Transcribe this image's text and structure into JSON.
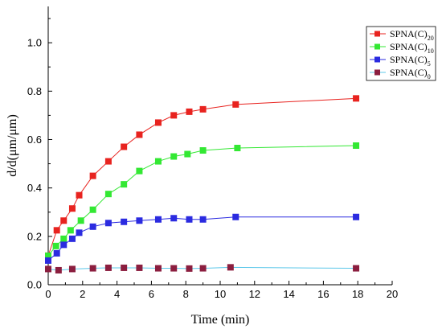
{
  "chart_data": {
    "type": "line",
    "xlabel": "Time (min)",
    "ylabel": "d/d(μm/μm)",
    "xlim": [
      0,
      20
    ],
    "ylim": [
      0,
      1.15
    ],
    "xticks": [
      "0",
      "2",
      "4",
      "6",
      "8",
      "10",
      "12",
      "14",
      "16",
      "18",
      "20"
    ],
    "yticks": [
      "0.0",
      "0.2",
      "0.4",
      "0.6",
      "0.8",
      "1.0"
    ],
    "grid": false,
    "legend_position": "top-right",
    "series": [
      {
        "name": "SPNA(C)",
        "name_sub": "20",
        "marker_color": "#e8231f",
        "line_color": "#e8231f",
        "points": [
          [
            0,
            0.12
          ],
          [
            0.5,
            0.225
          ],
          [
            0.9,
            0.265
          ],
          [
            1.4,
            0.315
          ],
          [
            1.8,
            0.37
          ],
          [
            2.6,
            0.45
          ],
          [
            3.5,
            0.51
          ],
          [
            4.4,
            0.57
          ],
          [
            5.3,
            0.62
          ],
          [
            6.4,
            0.67
          ],
          [
            7.3,
            0.7
          ],
          [
            8.2,
            0.715
          ],
          [
            9.0,
            0.725
          ],
          [
            10.9,
            0.745
          ],
          [
            17.9,
            0.77
          ]
        ]
      },
      {
        "name": "SPNA(C)",
        "name_sub": "10",
        "marker_color": "#33e833",
        "line_color": "#33e833",
        "points": [
          [
            0,
            0.12
          ],
          [
            0.45,
            0.16
          ],
          [
            0.9,
            0.19
          ],
          [
            1.3,
            0.225
          ],
          [
            1.9,
            0.265
          ],
          [
            2.6,
            0.31
          ],
          [
            3.5,
            0.375
          ],
          [
            4.4,
            0.415
          ],
          [
            5.3,
            0.47
          ],
          [
            6.4,
            0.51
          ],
          [
            7.3,
            0.53
          ],
          [
            8.1,
            0.54
          ],
          [
            9.0,
            0.555
          ],
          [
            11.0,
            0.565
          ],
          [
            17.9,
            0.575
          ]
        ]
      },
      {
        "name": "SPNA(C)",
        "name_sub": "5",
        "marker_color": "#2b2be0",
        "line_color": "#2b2be0",
        "points": [
          [
            0,
            0.1
          ],
          [
            0.5,
            0.13
          ],
          [
            0.9,
            0.165
          ],
          [
            1.4,
            0.19
          ],
          [
            1.8,
            0.215
          ],
          [
            2.6,
            0.24
          ],
          [
            3.5,
            0.255
          ],
          [
            4.4,
            0.26
          ],
          [
            5.3,
            0.265
          ],
          [
            6.4,
            0.27
          ],
          [
            7.3,
            0.275
          ],
          [
            8.2,
            0.27
          ],
          [
            9.0,
            0.27
          ],
          [
            10.9,
            0.28
          ],
          [
            17.9,
            0.28
          ]
        ]
      },
      {
        "name": "SPNA(C)",
        "name_sub": "0",
        "marker_color": "#8b1e3f",
        "line_color": "#5ec8ea",
        "points": [
          [
            0,
            0.065
          ],
          [
            0.6,
            0.06
          ],
          [
            1.4,
            0.065
          ],
          [
            2.6,
            0.068
          ],
          [
            3.5,
            0.07
          ],
          [
            4.4,
            0.07
          ],
          [
            5.3,
            0.07
          ],
          [
            6.4,
            0.068
          ],
          [
            7.3,
            0.068
          ],
          [
            8.2,
            0.067
          ],
          [
            9.0,
            0.068
          ],
          [
            10.6,
            0.072
          ],
          [
            17.9,
            0.068
          ]
        ]
      }
    ]
  }
}
